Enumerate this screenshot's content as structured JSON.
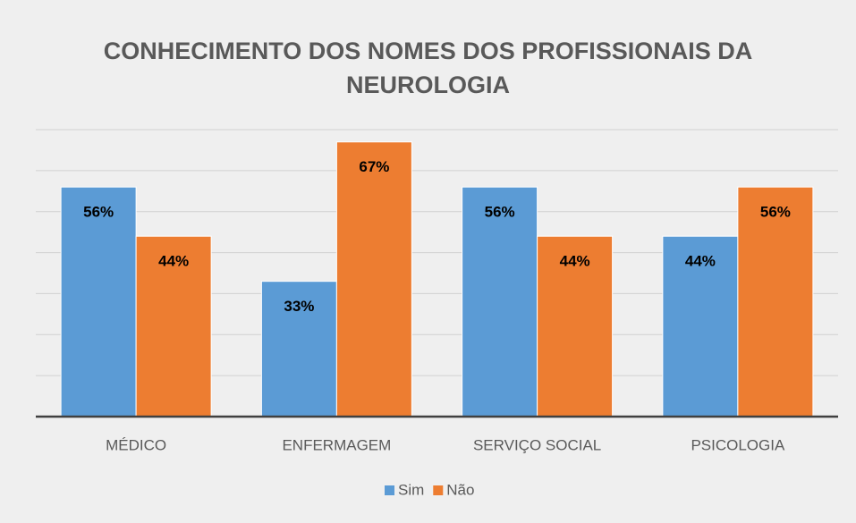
{
  "chart_data": {
    "type": "bar",
    "title": "CONHECIMENTO DOS NOMES DOS PROFISSIONAIS DA NEUROLOGIA",
    "categories": [
      "MÉDICO",
      "ENFERMAGEM",
      "SERVIÇO SOCIAL",
      "PSICOLOGIA"
    ],
    "series": [
      {
        "name": "Sim",
        "color": "#5b9bd5",
        "values": [
          56,
          33,
          56,
          44
        ],
        "value_labels": [
          "56%",
          "33%",
          "56%",
          "44%"
        ]
      },
      {
        "name": "Não",
        "color": "#ed7d31",
        "values": [
          44,
          67,
          44,
          56
        ],
        "value_labels": [
          "44%",
          "67%",
          "44%",
          "56%"
        ]
      }
    ],
    "ylim": [
      0,
      70
    ],
    "yticks": [
      0,
      10,
      20,
      30,
      40,
      50,
      60,
      70
    ],
    "grid": true,
    "legend": "bottom"
  }
}
